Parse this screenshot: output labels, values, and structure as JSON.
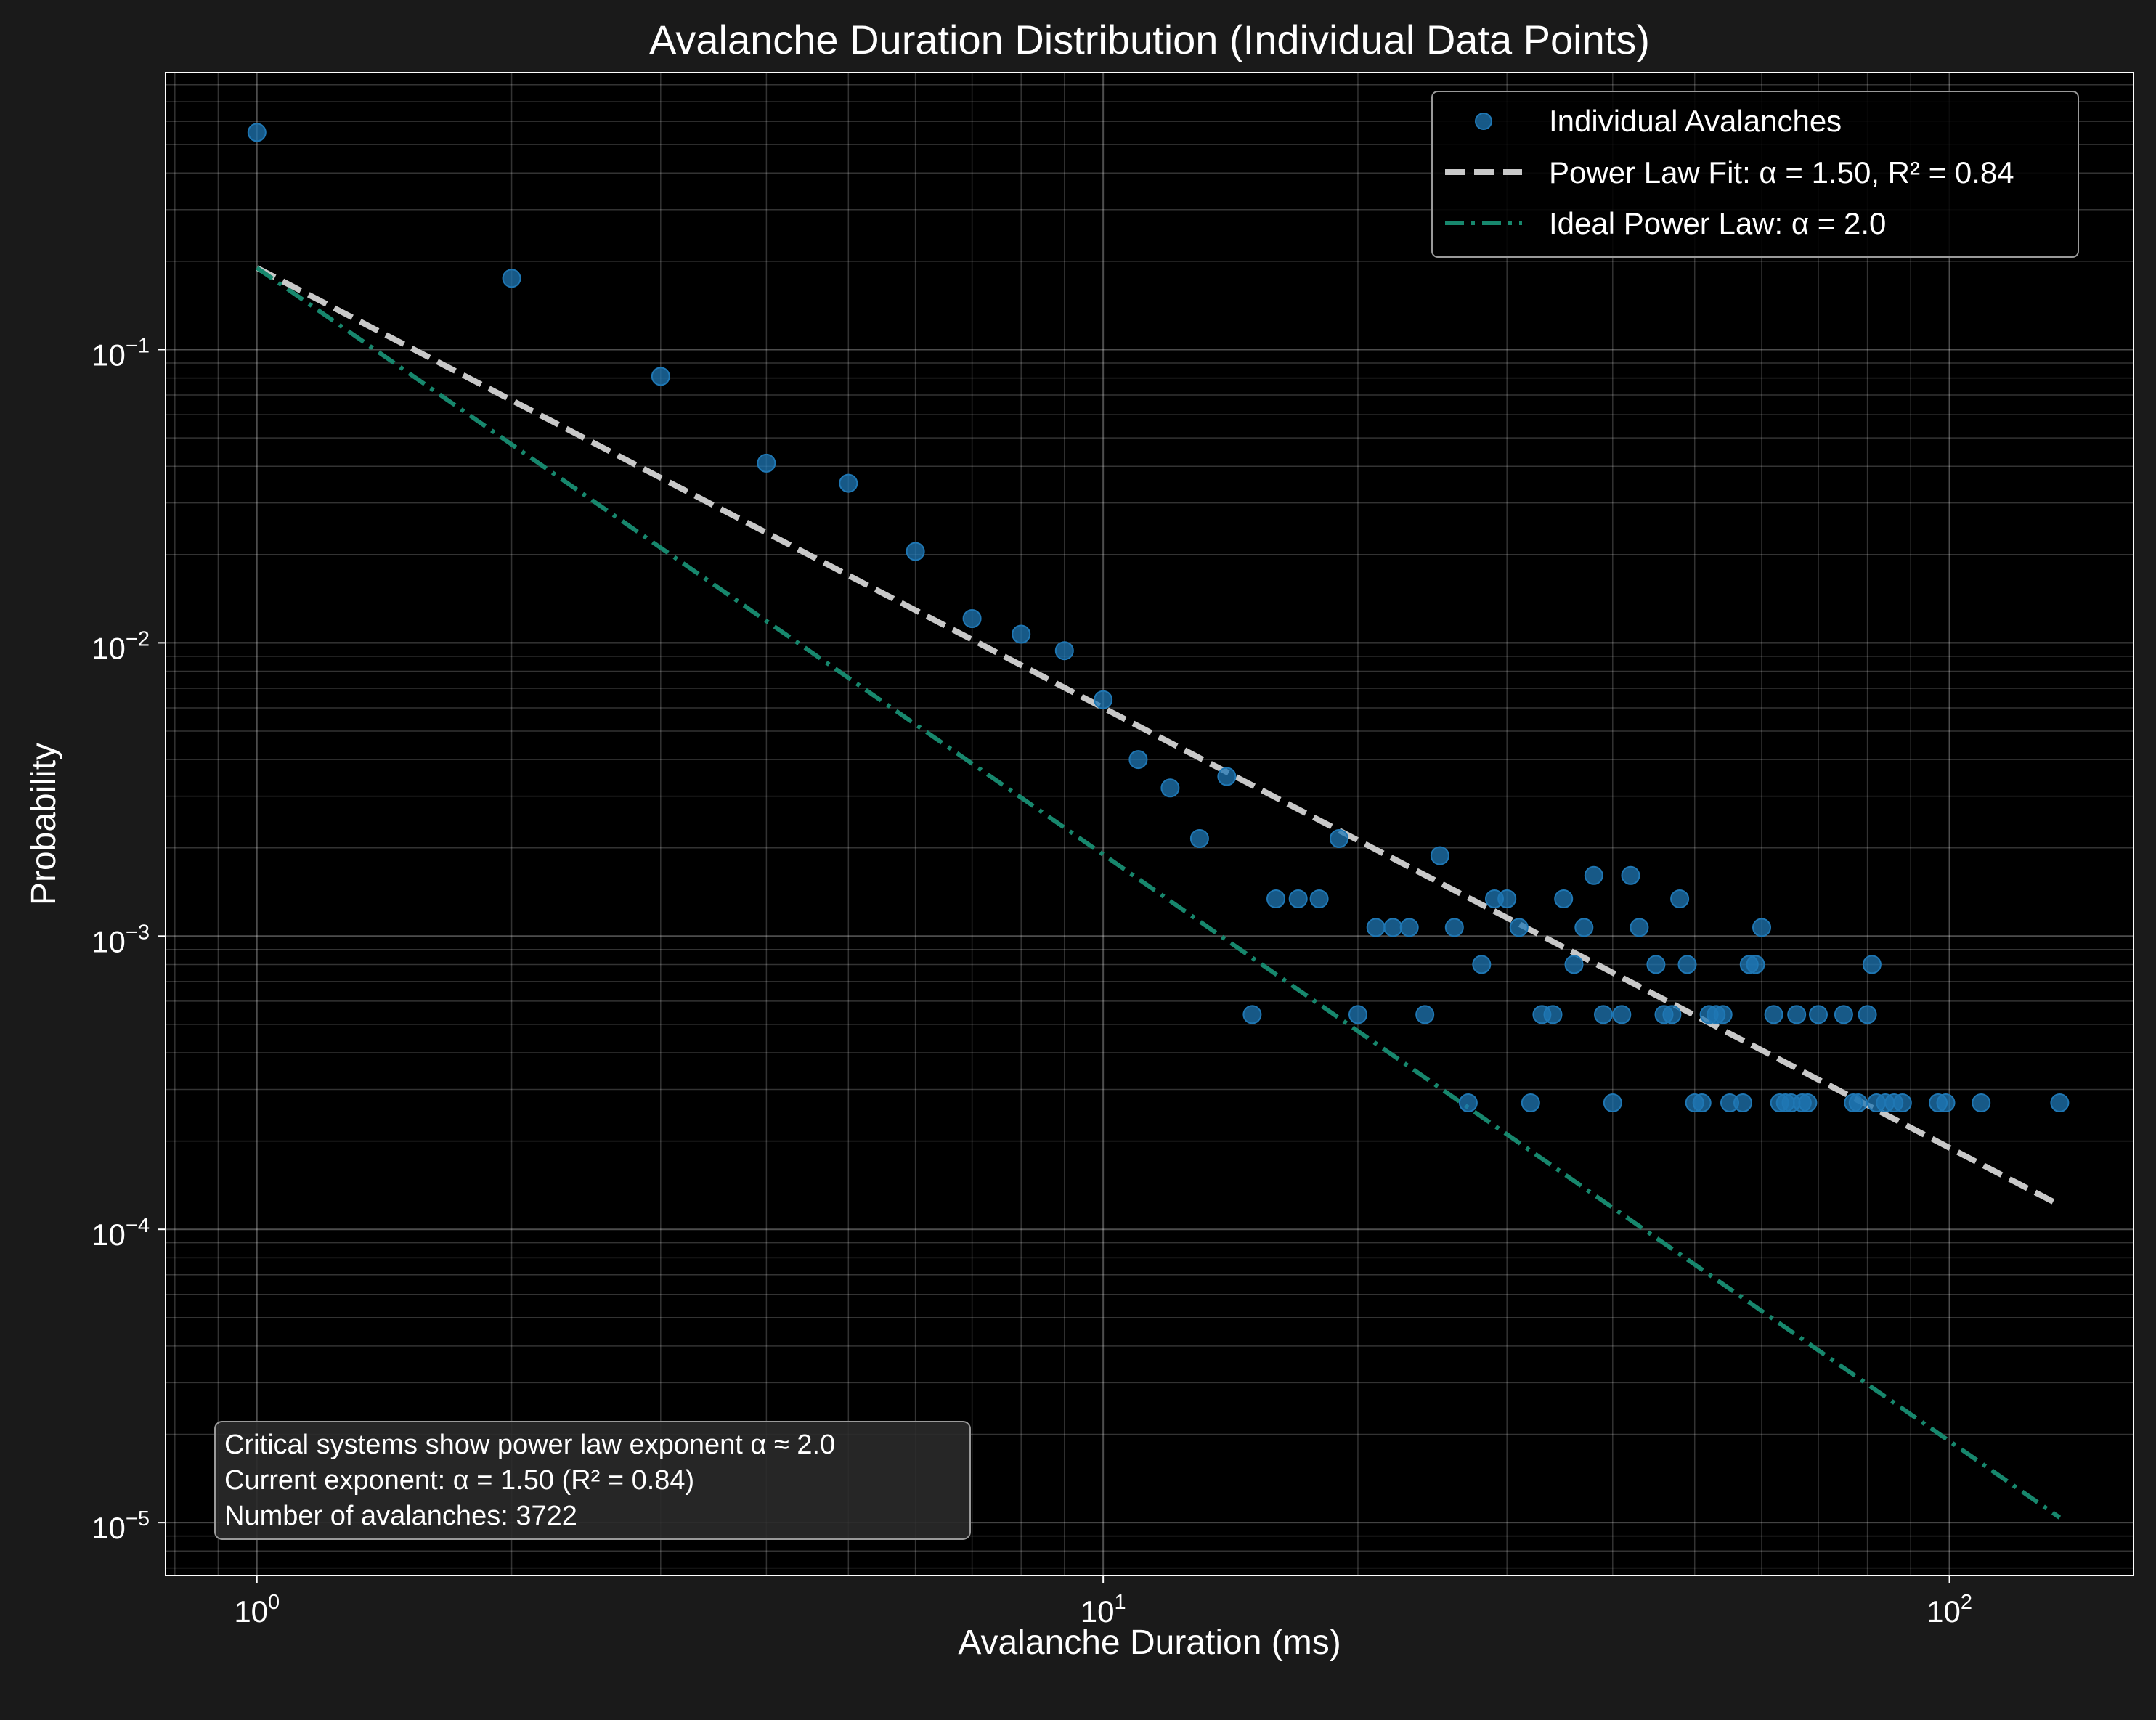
{
  "chart_data": {
    "type": "scatter",
    "title": "Avalanche Duration Distribution (Individual Data Points)",
    "xlabel": "Avalanche Duration (ms)",
    "ylabel": "Probability",
    "x_scale": "log",
    "y_scale": "log",
    "xlim": [
      0.78,
      165
    ],
    "ylim": [
      6.6e-06,
      0.88
    ],
    "x_ticks": [
      {
        "value": 1,
        "base": "10",
        "exp": "0"
      },
      {
        "value": 10,
        "base": "10",
        "exp": "1"
      },
      {
        "value": 100,
        "base": "10",
        "exp": "2"
      }
    ],
    "y_ticks": [
      {
        "value": 1e-05,
        "base": "10",
        "exp": "−5"
      },
      {
        "value": 0.0001,
        "base": "10",
        "exp": "−4"
      },
      {
        "value": 0.001,
        "base": "10",
        "exp": "−3"
      },
      {
        "value": 0.01,
        "base": "10",
        "exp": "−2"
      },
      {
        "value": 0.1,
        "base": "10",
        "exp": "−1"
      }
    ],
    "grid": true,
    "legend_position": "top-right",
    "series": [
      {
        "name": "Individual Avalanches",
        "kind": "scatter",
        "color": "#1f77b4",
        "points": [
          [
            1,
            0.55
          ],
          [
            2,
            0.175
          ],
          [
            3,
            0.081
          ],
          [
            4,
            0.041
          ],
          [
            5,
            0.035
          ],
          [
            6,
            0.0205
          ],
          [
            7,
            0.0121
          ],
          [
            8,
            0.0107
          ],
          [
            9,
            0.0094
          ],
          [
            10,
            0.0064
          ],
          [
            11,
            0.004
          ],
          [
            12,
            0.0032
          ],
          [
            13,
            0.00215
          ],
          [
            14,
            0.0035
          ],
          [
            15,
            0.00054
          ],
          [
            16,
            0.00134
          ],
          [
            17,
            0.00134
          ],
          [
            18,
            0.00134
          ],
          [
            19,
            0.00215
          ],
          [
            20,
            0.00054
          ],
          [
            21,
            0.00107
          ],
          [
            22,
            0.00107
          ],
          [
            23,
            0.00107
          ],
          [
            24,
            0.00054
          ],
          [
            25,
            0.00188
          ],
          [
            26,
            0.00107
          ],
          [
            27,
            0.00027
          ],
          [
            28,
            0.0008
          ],
          [
            29,
            0.00134
          ],
          [
            30,
            0.00134
          ],
          [
            31,
            0.00107
          ],
          [
            32,
            0.00027
          ],
          [
            33,
            0.00054
          ],
          [
            34,
            0.00054
          ],
          [
            35,
            0.00134
          ],
          [
            36,
            0.0008
          ],
          [
            37,
            0.00107
          ],
          [
            38,
            0.00161
          ],
          [
            39,
            0.00054
          ],
          [
            40,
            0.00027
          ],
          [
            41,
            0.00054
          ],
          [
            42,
            0.00161
          ],
          [
            43,
            0.00107
          ],
          [
            45,
            0.0008
          ],
          [
            46,
            0.00054
          ],
          [
            47,
            0.00054
          ],
          [
            48,
            0.00134
          ],
          [
            49,
            0.0008
          ],
          [
            50,
            0.00027
          ],
          [
            51,
            0.00027
          ],
          [
            52,
            0.00054
          ],
          [
            53,
            0.00054
          ],
          [
            54,
            0.00054
          ],
          [
            55,
            0.00027
          ],
          [
            57,
            0.00027
          ],
          [
            58,
            0.0008
          ],
          [
            59,
            0.0008
          ],
          [
            60,
            0.00107
          ],
          [
            62,
            0.00054
          ],
          [
            63,
            0.00027
          ],
          [
            64,
            0.00027
          ],
          [
            65,
            0.00027
          ],
          [
            66,
            0.00054
          ],
          [
            67,
            0.00027
          ],
          [
            68,
            0.00027
          ],
          [
            70,
            0.00054
          ],
          [
            75,
            0.00054
          ],
          [
            77,
            0.00027
          ],
          [
            78,
            0.00027
          ],
          [
            80,
            0.00054
          ],
          [
            81,
            0.0008
          ],
          [
            82,
            0.00027
          ],
          [
            84,
            0.00027
          ],
          [
            86,
            0.00027
          ],
          [
            88,
            0.00027
          ],
          [
            97,
            0.00027
          ],
          [
            99,
            0.00027
          ],
          [
            109,
            0.00027
          ],
          [
            135,
            0.00027
          ]
        ]
      },
      {
        "name": "Power Law Fit: α = 1.50, R² = 0.84",
        "kind": "line",
        "style": "dashed",
        "color": "#c8c8c8",
        "x": [
          1,
          135
        ],
        "y": [
          0.19,
          0.000121
        ]
      },
      {
        "name": "Ideal Power Law: α = 2.0",
        "kind": "line",
        "style": "dashdot",
        "color": "#17876d",
        "x": [
          1,
          135
        ],
        "y": [
          0.19,
          1.04e-05
        ]
      }
    ],
    "annotation": {
      "lines": [
        "Critical systems show power law exponent α ≈ 2.0",
        "Current exponent: α = 1.50 (R² = 0.84)",
        "Number of avalanches: 3722"
      ]
    }
  }
}
